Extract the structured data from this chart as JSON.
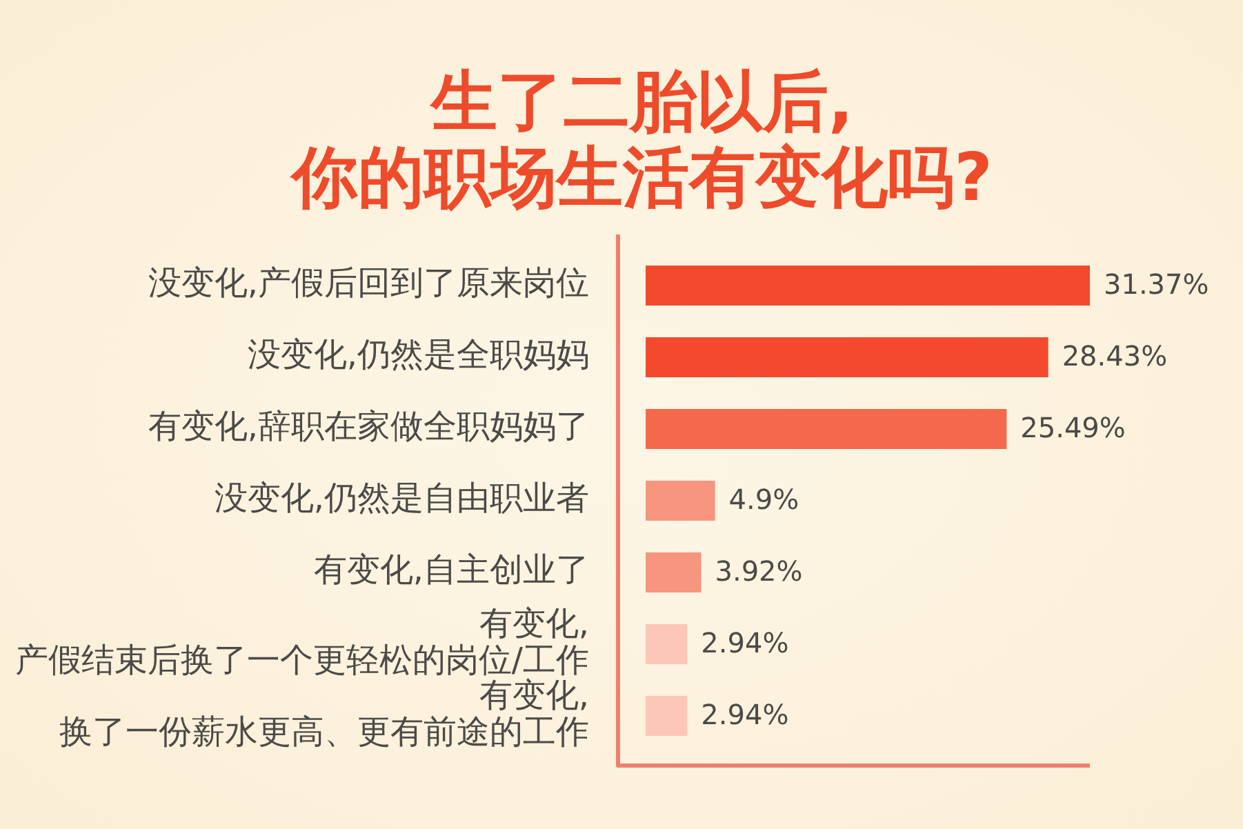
{
  "chart_data": {
    "type": "bar",
    "orientation": "horizontal",
    "title": "生了二胎以后,\n你的职场生活有变化吗?",
    "categories": [
      "没变化,产假后回到了原来岗位",
      "没变化,仍然是全职妈妈",
      "有变化,辞职在家做全职妈妈了",
      "没变化,仍然是自由职业者",
      "有变化,自主创业了",
      "有变化,产假结束后换了一个更轻松的岗位/工作",
      "有变化,换了一份薪水更高、更有前途的工作"
    ],
    "values": [
      31.37,
      28.43,
      25.49,
      4.9,
      3.92,
      2.94,
      2.94
    ],
    "value_labels": [
      "31.37%",
      "28.43%",
      "25.49%",
      "4.9%",
      "3.92%",
      "2.94%",
      "2.94%"
    ],
    "colors": [
      "#f34a2d",
      "#f34a2d",
      "#f4684c",
      "#f7957f",
      "#f7957f",
      "#fcc7b8",
      "#fcc7b8"
    ],
    "tick_labels": "y"
  }
}
